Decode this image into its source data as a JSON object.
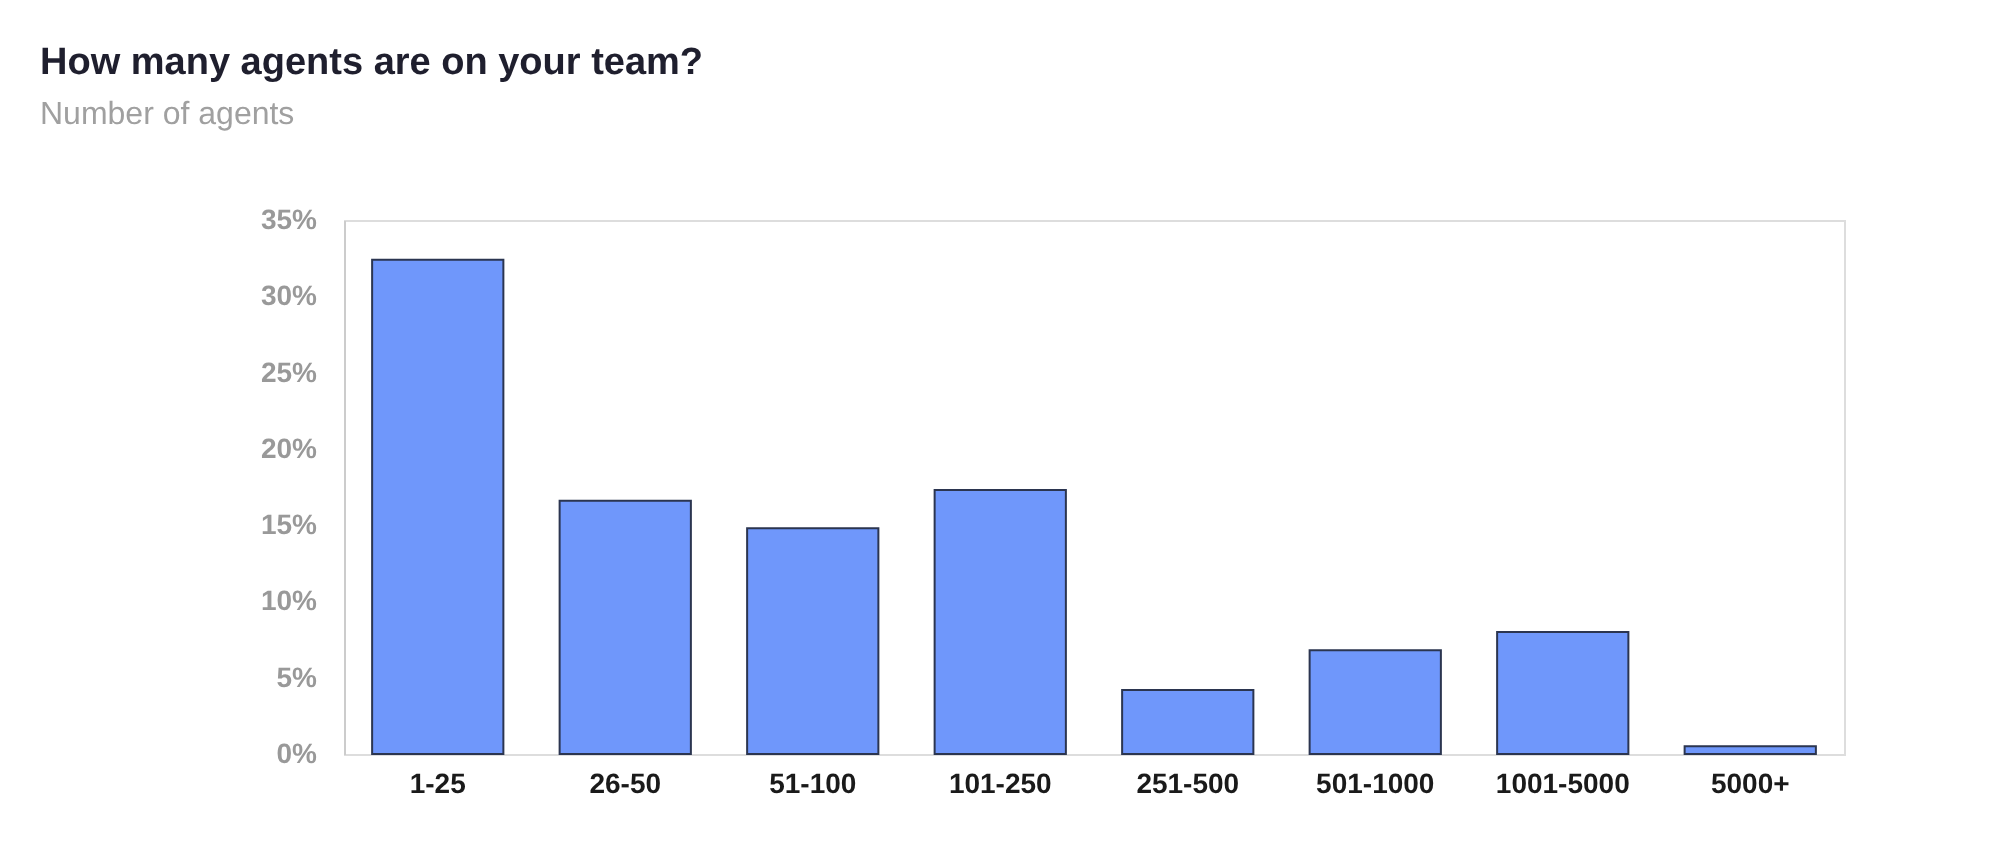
{
  "chart_data": {
    "type": "bar",
    "title": "How many agents are on your team?",
    "subtitle": "Number of agents",
    "categories": [
      "1-25",
      "26-50",
      "51-100",
      "101-250",
      "251-500",
      "501-1000",
      "1001-5000",
      "5000+"
    ],
    "values": [
      32.4,
      16.6,
      14.8,
      17.3,
      4.2,
      6.8,
      8.0,
      0.5
    ],
    "color": "#6f97fb",
    "ylim": [
      0,
      35
    ],
    "yticks": [
      {
        "value": 0,
        "label": "0%"
      },
      {
        "value": 5,
        "label": "5%"
      },
      {
        "value": 10,
        "label": "10%"
      },
      {
        "value": 15,
        "label": "15%"
      },
      {
        "value": 20,
        "label": "20%"
      },
      {
        "value": 25,
        "label": "25%"
      },
      {
        "value": 30,
        "label": "30%"
      },
      {
        "value": 35,
        "label": "35%"
      }
    ],
    "grid": false
  }
}
